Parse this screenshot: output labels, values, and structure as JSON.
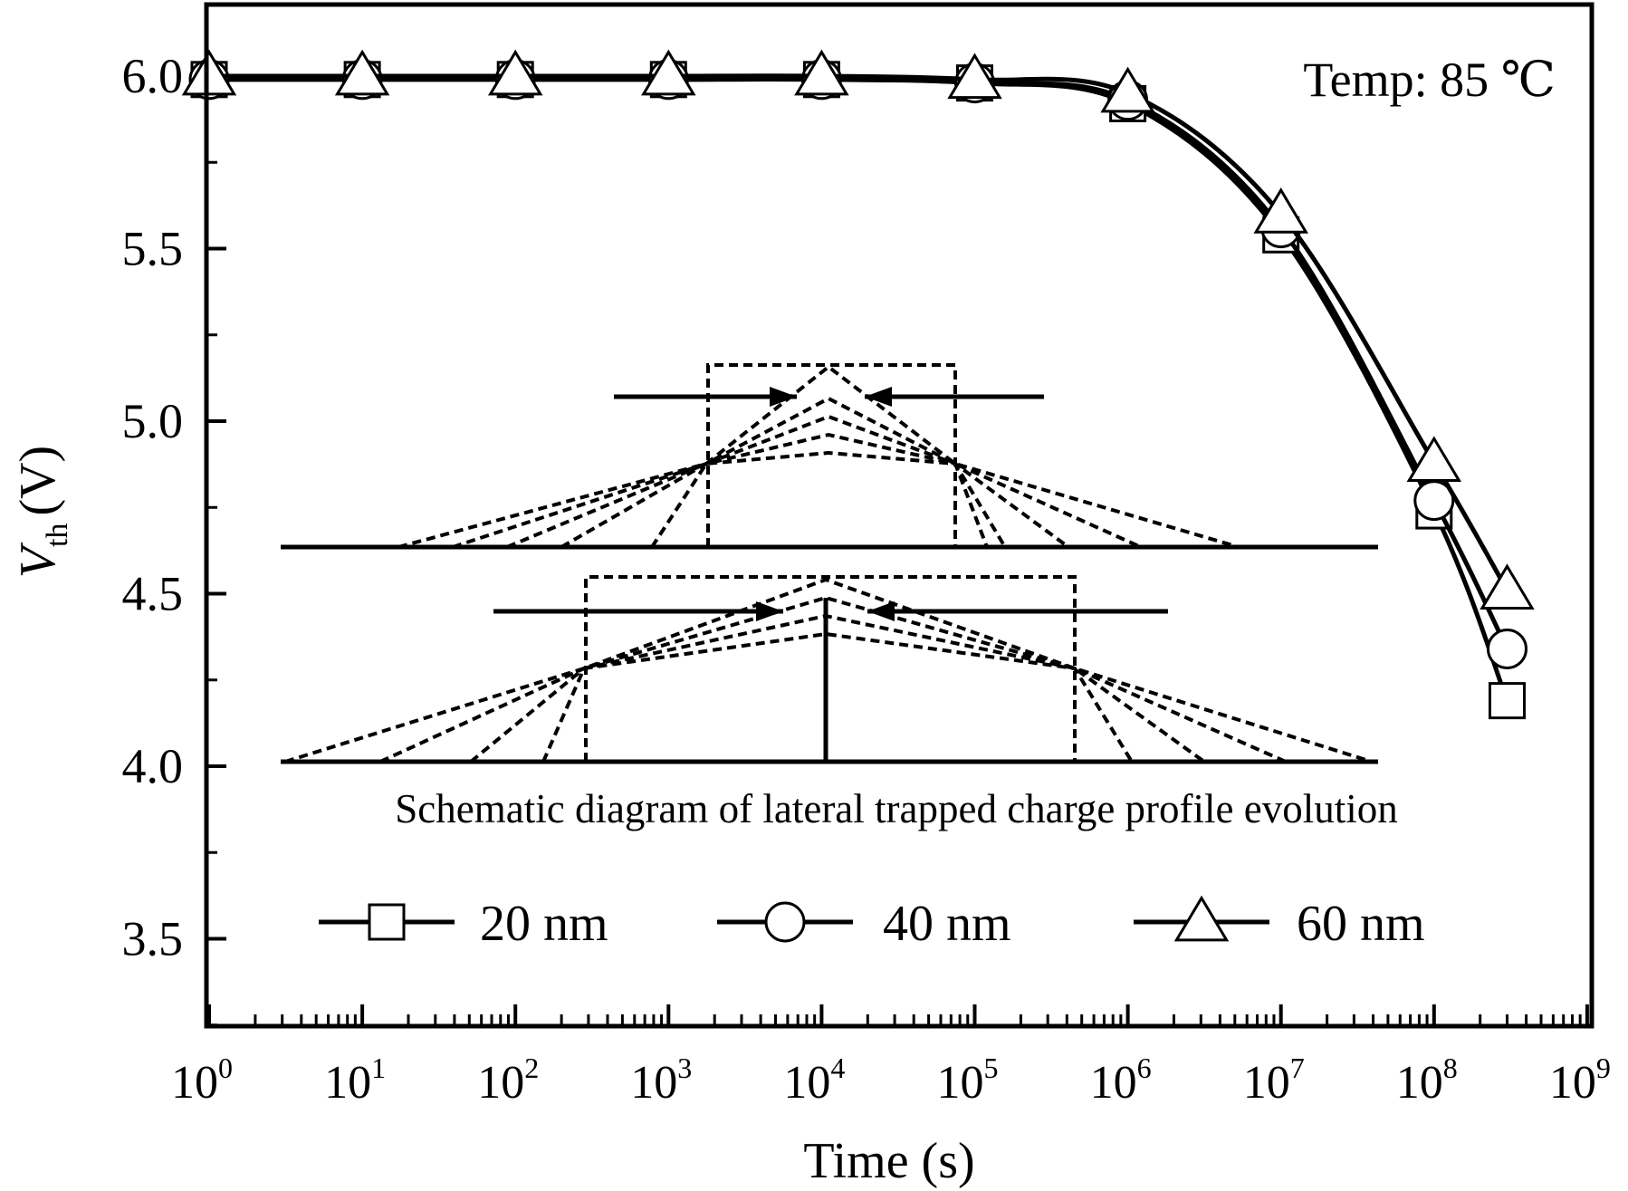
{
  "chart_data": {
    "type": "line",
    "title": "",
    "xlabel": "Time (s)",
    "ylabel_main": "V",
    "ylabel_sub": "th",
    "ylabel_unit": "(V)",
    "x_scale": "log",
    "xlim_exp": [
      0,
      9
    ],
    "ylim": [
      3.2,
      6.25
    ],
    "xticks": [
      {
        "base": "10",
        "exp": "0"
      },
      {
        "base": "10",
        "exp": "1"
      },
      {
        "base": "10",
        "exp": "2"
      },
      {
        "base": "10",
        "exp": "3"
      },
      {
        "base": "10",
        "exp": "4"
      },
      {
        "base": "10",
        "exp": "5"
      },
      {
        "base": "10",
        "exp": "6"
      },
      {
        "base": "10",
        "exp": "7"
      },
      {
        "base": "10",
        "exp": "8"
      },
      {
        "base": "10",
        "exp": "9"
      }
    ],
    "yticks": [
      "3.5",
      "4.0",
      "4.5",
      "5.0",
      "5.5",
      "6.0"
    ],
    "annotation": "Temp: 85 ℃",
    "inset_caption": "Schematic diagram of lateral trapped charge profile evolution",
    "legend_position": "bottom-inside",
    "series": [
      {
        "name": "20 nm",
        "marker": "square",
        "x": [
          1,
          10,
          100,
          1000,
          10000,
          100000,
          1000000,
          10000000,
          100000000,
          300000000
        ],
        "y": [
          5.99,
          5.99,
          5.99,
          5.99,
          5.99,
          5.98,
          5.92,
          5.54,
          4.74,
          4.19
        ]
      },
      {
        "name": "40 nm",
        "marker": "circle",
        "x": [
          1,
          10,
          100,
          1000,
          10000,
          100000,
          1000000,
          10000000,
          100000000,
          300000000
        ],
        "y": [
          5.99,
          5.99,
          5.99,
          5.99,
          5.99,
          5.98,
          5.93,
          5.56,
          4.77,
          4.34
        ]
      },
      {
        "name": "60 nm",
        "marker": "triangle",
        "x": [
          1,
          10,
          100,
          1000,
          10000,
          100000,
          1000000,
          10000000,
          100000000,
          300000000
        ],
        "y": [
          6.0,
          6.0,
          6.0,
          6.0,
          6.0,
          5.99,
          5.95,
          5.6,
          4.88,
          4.51
        ]
      }
    ]
  }
}
